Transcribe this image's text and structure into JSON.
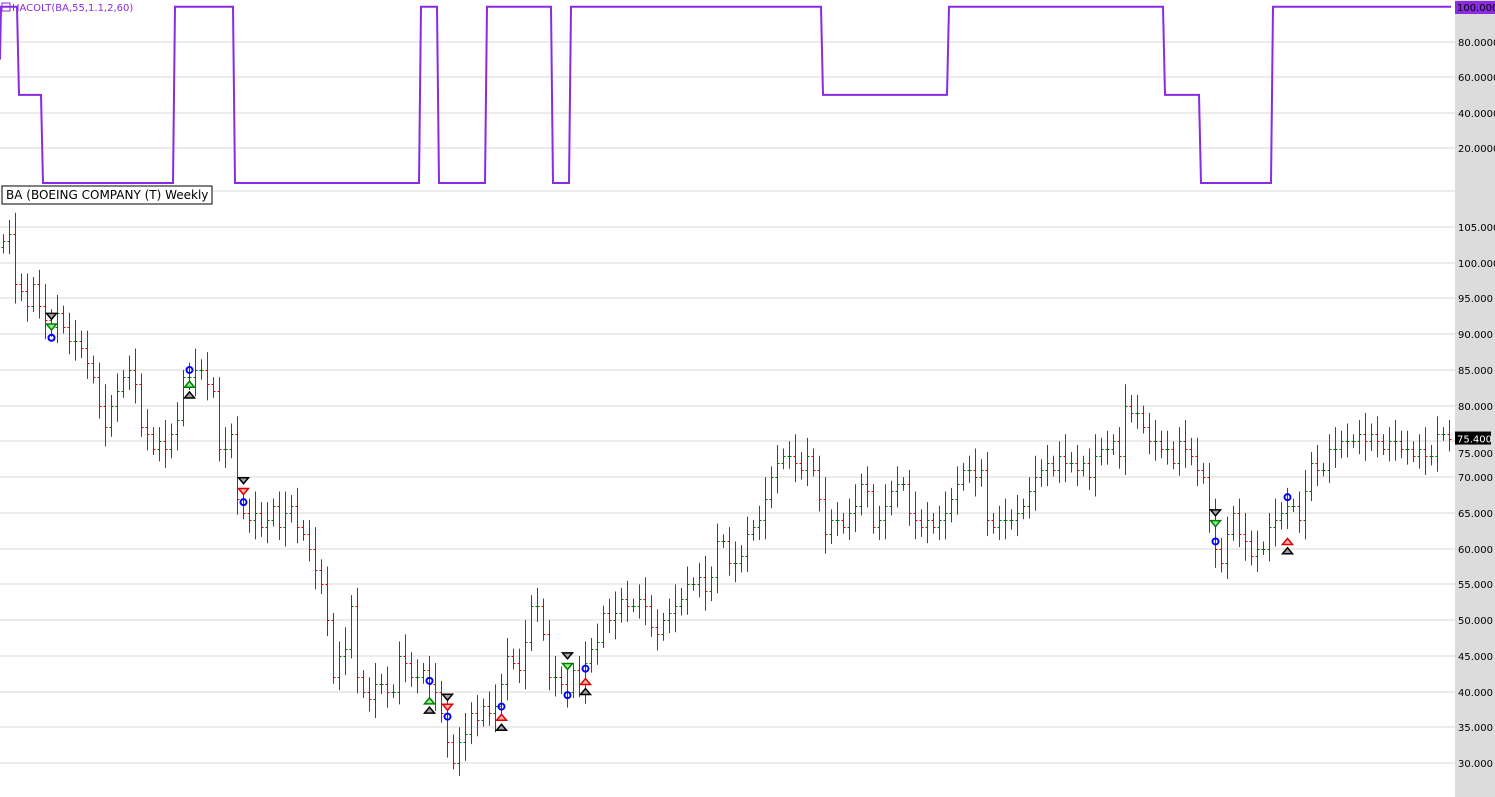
{
  "indicator_label": "HACOLT(BA,55,1.1,2,60)",
  "price_label": "BA (BOEING COMPANY (T) Weekly",
  "colors": {
    "indicator": "#8a2be2",
    "up_bar": "#007000",
    "down_bar": "#e00000",
    "axis_bg": "#dcdcdc",
    "grid": "#d8d8d8"
  },
  "chart_data": [
    {
      "type": "line",
      "title": "HACOLT(BA,55,1.1,2,60)",
      "ylim": [
        0,
        100
      ],
      "y_ticks": [
        "20.0000",
        "40.0000",
        "60.0000",
        "80.0000"
      ],
      "last_value_label": "100.0000",
      "grid": true,
      "runs_value_count": [
        [
          100,
          3
        ],
        [
          50,
          4
        ],
        [
          0,
          22
        ],
        [
          100,
          10
        ],
        [
          0,
          31
        ],
        [
          100,
          3
        ],
        [
          0,
          8
        ],
        [
          100,
          11
        ],
        [
          0,
          3
        ],
        [
          100,
          42
        ],
        [
          50,
          21
        ],
        [
          100,
          36
        ],
        [
          50,
          6
        ],
        [
          0,
          12
        ],
        [
          100,
          30
        ]
      ]
    },
    {
      "type": "ohlc",
      "title": "BA (BOEING COMPANY (T) Weekly",
      "ylim": [
        29,
        109
      ],
      "y_ticks": [
        "30.000",
        "35.000",
        "40.000",
        "45.000",
        "50.000",
        "55.000",
        "60.000",
        "65.000",
        "70.000",
        "75.000",
        "80.000",
        "85.000",
        "90.000",
        "95.000",
        "100.000",
        "105.000"
      ],
      "last_value_label": "75.400",
      "grid": true,
      "closes": [
        103,
        104,
        97,
        96,
        94,
        97,
        94,
        92,
        91,
        93,
        91,
        89,
        89,
        88,
        86,
        84,
        80,
        77,
        80,
        82,
        84,
        85,
        83,
        77,
        76,
        74,
        75,
        74,
        76,
        78,
        84,
        84,
        85,
        85,
        83,
        82,
        74,
        74,
        76,
        67,
        65,
        64,
        65,
        63,
        64,
        66,
        63,
        65,
        66,
        63,
        62,
        60,
        57,
        55,
        50,
        42,
        45,
        46,
        52,
        42,
        40,
        39,
        41,
        41,
        40,
        40,
        45,
        44,
        42,
        42,
        43,
        41,
        40,
        37,
        33,
        30,
        33,
        34,
        37,
        36,
        38,
        37,
        38,
        41,
        45,
        44,
        43,
        47,
        52,
        52,
        48,
        42,
        42,
        41,
        40,
        43,
        41,
        44,
        46,
        47,
        51,
        50,
        51,
        53,
        52,
        52,
        53,
        52,
        49,
        48,
        50,
        51,
        52,
        53,
        55,
        55,
        56,
        54,
        56,
        61,
        61,
        58,
        58,
        59,
        62,
        63,
        64,
        67,
        70,
        72,
        73,
        73,
        72,
        71,
        73,
        71,
        67,
        62,
        64,
        64,
        63,
        65,
        66,
        69,
        68,
        63,
        64,
        66,
        68,
        69,
        69,
        65,
        64,
        63,
        64,
        63,
        64,
        65,
        67,
        69,
        71,
        71,
        70,
        71,
        64,
        63,
        64,
        64,
        64,
        65,
        66,
        68,
        70,
        71,
        72,
        71,
        73,
        72,
        72,
        71,
        72,
        70,
        73,
        74,
        74,
        75,
        73,
        80,
        79,
        79,
        77,
        75,
        75,
        74,
        74,
        72,
        75,
        74,
        73,
        71,
        70,
        64,
        60,
        58,
        62,
        65,
        62,
        61,
        59,
        60,
        60,
        63,
        64,
        65,
        66,
        66,
        64,
        68,
        72,
        71,
        71,
        74,
        74,
        75,
        75,
        75,
        76,
        75,
        76,
        75,
        74,
        75,
        75,
        74,
        74,
        73,
        74,
        73,
        73,
        76,
        76,
        75.4
      ],
      "signals": [
        {
          "bar": 8,
          "marks": [
            [
              "sell-gray",
              92.5
            ],
            [
              "sell-green",
              91
            ],
            [
              "circle-blue",
              89.5
            ]
          ]
        },
        {
          "bar": 31,
          "marks": [
            [
              "circle-blue",
              85
            ],
            [
              "buy-green",
              83
            ],
            [
              "buy-gray",
              81.5
            ]
          ]
        },
        {
          "bar": 40,
          "marks": [
            [
              "sell-gray",
              69.5
            ],
            [
              "sell-red",
              68
            ],
            [
              "circle-blue",
              66.5
            ]
          ]
        },
        {
          "bar": 71,
          "marks": [
            [
              "circle-blue",
              41.5
            ],
            [
              "buy-green",
              38.7
            ],
            [
              "buy-gray",
              37.4
            ]
          ]
        },
        {
          "bar": 74,
          "marks": [
            [
              "sell-gray",
              39.2
            ],
            [
              "sell-red",
              37.8
            ],
            [
              "circle-blue",
              36.5
            ]
          ]
        },
        {
          "bar": 83,
          "marks": [
            [
              "circle-blue",
              37.9
            ],
            [
              "buy-red",
              36.4
            ],
            [
              "buy-gray",
              35
            ]
          ]
        },
        {
          "bar": 94,
          "marks": [
            [
              "sell-gray",
              45
            ],
            [
              "sell-green",
              43.5
            ],
            [
              "circle-blue",
              39.5
            ]
          ]
        },
        {
          "bar": 97,
          "marks": [
            [
              "circle-blue",
              43.2
            ],
            [
              "buy-red",
              41.4
            ],
            [
              "buy-gray",
              40
            ]
          ]
        },
        {
          "bar": 202,
          "marks": [
            [
              "sell-gray",
              65
            ],
            [
              "sell-green",
              63.5
            ],
            [
              "circle-blue",
              61
            ]
          ]
        },
        {
          "bar": 214,
          "marks": [
            [
              "circle-blue",
              67.2
            ],
            [
              "buy-red",
              61
            ],
            [
              "buy-gray",
              59.7
            ]
          ]
        }
      ]
    }
  ]
}
